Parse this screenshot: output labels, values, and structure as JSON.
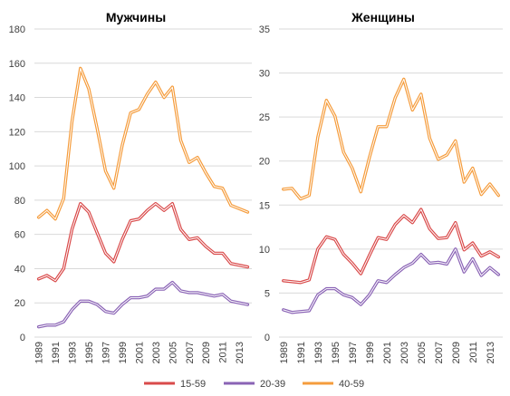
{
  "legend": {
    "items": [
      {
        "label": "15-59",
        "color": "#d94a4a"
      },
      {
        "label": "20-39",
        "color": "#8a63b5"
      },
      {
        "label": "40-59",
        "color": "#f59c3c"
      }
    ],
    "placement": "bottom-center"
  },
  "chart_data": [
    {
      "type": "line",
      "title": "Мужчины",
      "x": [
        1989,
        1990,
        1991,
        1992,
        1993,
        1994,
        1995,
        1996,
        1997,
        1998,
        1999,
        2000,
        2001,
        2002,
        2003,
        2004,
        2005,
        2006,
        2007,
        2008,
        2009,
        2010,
        2011,
        2012,
        2013,
        2014
      ],
      "x_tick_labels": [
        "1989",
        "1991",
        "1993",
        "1995",
        "1997",
        "1999",
        "2001",
        "2003",
        "2005",
        "2007",
        "2009",
        "2011",
        "2013"
      ],
      "ylim": [
        0,
        180
      ],
      "y_ticks": [
        "0",
        "20",
        "40",
        "60",
        "80",
        "100",
        "120",
        "140",
        "160",
        "180"
      ],
      "grid": true,
      "series": [
        {
          "name": "15-59",
          "color": "#d94a4a",
          "values": [
            34,
            36,
            33,
            40,
            63,
            78,
            73,
            61,
            49,
            44,
            57,
            68,
            69,
            74,
            78,
            74,
            78,
            63,
            57,
            58,
            53,
            49,
            49,
            43,
            42,
            41
          ]
        },
        {
          "name": "20-39",
          "color": "#8a63b5",
          "values": [
            6,
            7,
            7,
            9,
            16,
            21,
            21,
            19,
            15,
            14,
            19,
            23,
            23,
            24,
            28,
            28,
            32,
            27,
            26,
            26,
            25,
            24,
            25,
            21,
            20,
            19
          ]
        },
        {
          "name": "40-59",
          "color": "#f59c3c",
          "values": [
            70,
            74,
            69,
            81,
            126,
            157,
            145,
            122,
            97,
            87,
            112,
            131,
            133,
            142,
            149,
            140,
            146,
            115,
            102,
            105,
            96,
            88,
            87,
            77,
            75,
            73
          ]
        }
      ]
    },
    {
      "type": "line",
      "title": "Женщины",
      "x": [
        1989,
        1990,
        1991,
        1992,
        1993,
        1994,
        1995,
        1996,
        1997,
        1998,
        1999,
        2000,
        2001,
        2002,
        2003,
        2004,
        2005,
        2006,
        2007,
        2008,
        2009,
        2010,
        2011,
        2012,
        2013,
        2014
      ],
      "x_tick_labels": [
        "1989",
        "1991",
        "1993",
        "1995",
        "1997",
        "1999",
        "2001",
        "2003",
        "2005",
        "2007",
        "2009",
        "2011",
        "2013"
      ],
      "ylim": [
        0,
        35
      ],
      "y_ticks": [
        "0",
        "5",
        "10",
        "15",
        "20",
        "25",
        "30",
        "35"
      ],
      "grid": true,
      "series": [
        {
          "name": "15-59",
          "color": "#d94a4a",
          "values": [
            6.4,
            6.3,
            6.2,
            6.5,
            10,
            11.4,
            11.1,
            9.4,
            8.4,
            7.2,
            9.3,
            11.3,
            11.1,
            12.8,
            13.8,
            13.0,
            14.5,
            12.3,
            11.2,
            11.3,
            13.0,
            9.9,
            10.7,
            9.2,
            9.7,
            9.1
          ]
        },
        {
          "name": "20-39",
          "color": "#8a63b5",
          "values": [
            3.1,
            2.8,
            2.9,
            3.0,
            4.8,
            5.5,
            5.5,
            4.8,
            4.5,
            3.7,
            4.8,
            6.4,
            6.2,
            7.1,
            7.9,
            8.4,
            9.4,
            8.4,
            8.5,
            8.3,
            10.0,
            7.4,
            8.9,
            7.0,
            7.9,
            7.1
          ]
        },
        {
          "name": "40-59",
          "color": "#f59c3c",
          "values": [
            16.8,
            16.9,
            15.7,
            16.1,
            22.7,
            26.9,
            25.1,
            21,
            19.2,
            16.5,
            20.4,
            23.9,
            23.9,
            27.2,
            29.3,
            25.8,
            27.6,
            22.6,
            20.2,
            20.7,
            22.3,
            17.6,
            19.2,
            16.2,
            17.4,
            16.1
          ]
        }
      ]
    }
  ]
}
